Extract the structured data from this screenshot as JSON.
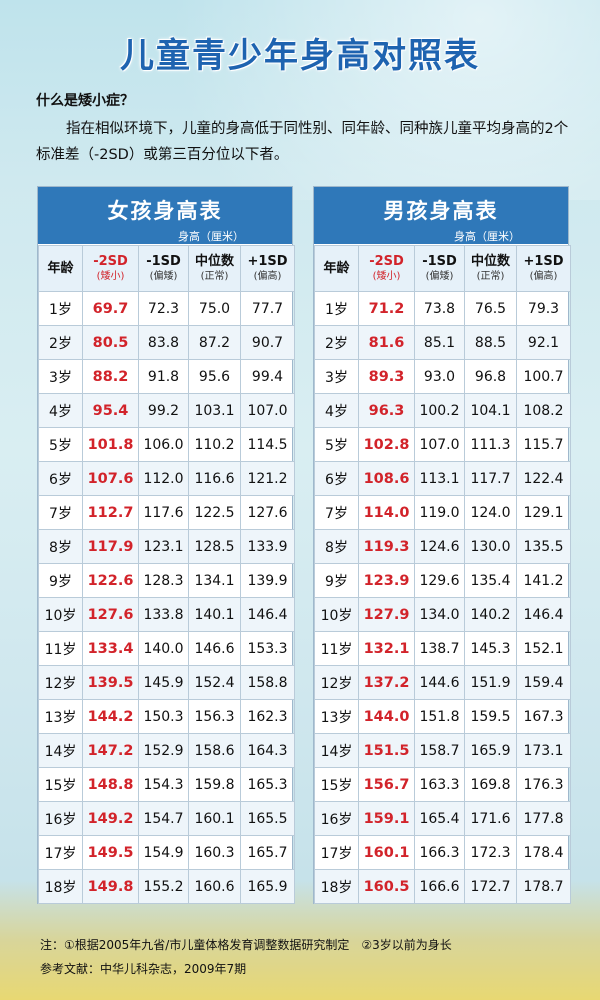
{
  "title": "儿童青少年身高对照表",
  "intro": {
    "question": "什么是矮小症？",
    "text": "指在相似环境下，儿童的身高低于同性别、同年龄、同种族儿童平均身高的2个标准差（-2SD）或第三百分位以下者。"
  },
  "columns": {
    "age": "年龄",
    "sd_minus2": "-2SD",
    "sd_minus2_sub": "(矮小)",
    "sd_minus1": "-1SD",
    "sd_minus1_sub": "(偏矮)",
    "median": "中位数",
    "median_sub": "(正常)",
    "sd_plus1": "+1SD",
    "sd_plus1_sub": "(偏高)"
  },
  "girl": {
    "title": "女孩身高表",
    "unit": "身高（厘米）",
    "rows": [
      {
        "age": "1岁",
        "m2": "69.7",
        "m1": "72.3",
        "med": "75.0",
        "p1": "77.7"
      },
      {
        "age": "2岁",
        "m2": "80.5",
        "m1": "83.8",
        "med": "87.2",
        "p1": "90.7"
      },
      {
        "age": "3岁",
        "m2": "88.2",
        "m1": "91.8",
        "med": "95.6",
        "p1": "99.4"
      },
      {
        "age": "4岁",
        "m2": "95.4",
        "m1": "99.2",
        "med": "103.1",
        "p1": "107.0"
      },
      {
        "age": "5岁",
        "m2": "101.8",
        "m1": "106.0",
        "med": "110.2",
        "p1": "114.5"
      },
      {
        "age": "6岁",
        "m2": "107.6",
        "m1": "112.0",
        "med": "116.6",
        "p1": "121.2"
      },
      {
        "age": "7岁",
        "m2": "112.7",
        "m1": "117.6",
        "med": "122.5",
        "p1": "127.6"
      },
      {
        "age": "8岁",
        "m2": "117.9",
        "m1": "123.1",
        "med": "128.5",
        "p1": "133.9"
      },
      {
        "age": "9岁",
        "m2": "122.6",
        "m1": "128.3",
        "med": "134.1",
        "p1": "139.9"
      },
      {
        "age": "10岁",
        "m2": "127.6",
        "m1": "133.8",
        "med": "140.1",
        "p1": "146.4"
      },
      {
        "age": "11岁",
        "m2": "133.4",
        "m1": "140.0",
        "med": "146.6",
        "p1": "153.3"
      },
      {
        "age": "12岁",
        "m2": "139.5",
        "m1": "145.9",
        "med": "152.4",
        "p1": "158.8"
      },
      {
        "age": "13岁",
        "m2": "144.2",
        "m1": "150.3",
        "med": "156.3",
        "p1": "162.3"
      },
      {
        "age": "14岁",
        "m2": "147.2",
        "m1": "152.9",
        "med": "158.6",
        "p1": "164.3"
      },
      {
        "age": "15岁",
        "m2": "148.8",
        "m1": "154.3",
        "med": "159.8",
        "p1": "165.3"
      },
      {
        "age": "16岁",
        "m2": "149.2",
        "m1": "154.7",
        "med": "160.1",
        "p1": "165.5"
      },
      {
        "age": "17岁",
        "m2": "149.5",
        "m1": "154.9",
        "med": "160.3",
        "p1": "165.7"
      },
      {
        "age": "18岁",
        "m2": "149.8",
        "m1": "155.2",
        "med": "160.6",
        "p1": "165.9"
      }
    ]
  },
  "boy": {
    "title": "男孩身高表",
    "unit": "身高（厘米）",
    "rows": [
      {
        "age": "1岁",
        "m2": "71.2",
        "m1": "73.8",
        "med": "76.5",
        "p1": "79.3"
      },
      {
        "age": "2岁",
        "m2": "81.6",
        "m1": "85.1",
        "med": "88.5",
        "p1": "92.1"
      },
      {
        "age": "3岁",
        "m2": "89.3",
        "m1": "93.0",
        "med": "96.8",
        "p1": "100.7"
      },
      {
        "age": "4岁",
        "m2": "96.3",
        "m1": "100.2",
        "med": "104.1",
        "p1": "108.2"
      },
      {
        "age": "5岁",
        "m2": "102.8",
        "m1": "107.0",
        "med": "111.3",
        "p1": "115.7"
      },
      {
        "age": "6岁",
        "m2": "108.6",
        "m1": "113.1",
        "med": "117.7",
        "p1": "122.4"
      },
      {
        "age": "7岁",
        "m2": "114.0",
        "m1": "119.0",
        "med": "124.0",
        "p1": "129.1"
      },
      {
        "age": "8岁",
        "m2": "119.3",
        "m1": "124.6",
        "med": "130.0",
        "p1": "135.5"
      },
      {
        "age": "9岁",
        "m2": "123.9",
        "m1": "129.6",
        "med": "135.4",
        "p1": "141.2"
      },
      {
        "age": "10岁",
        "m2": "127.9",
        "m1": "134.0",
        "med": "140.2",
        "p1": "146.4"
      },
      {
        "age": "11岁",
        "m2": "132.1",
        "m1": "138.7",
        "med": "145.3",
        "p1": "152.1"
      },
      {
        "age": "12岁",
        "m2": "137.2",
        "m1": "144.6",
        "med": "151.9",
        "p1": "159.4"
      },
      {
        "age": "13岁",
        "m2": "144.0",
        "m1": "151.8",
        "med": "159.5",
        "p1": "167.3"
      },
      {
        "age": "14岁",
        "m2": "151.5",
        "m1": "158.7",
        "med": "165.9",
        "p1": "173.1"
      },
      {
        "age": "15岁",
        "m2": "156.7",
        "m1": "163.3",
        "med": "169.8",
        "p1": "176.3"
      },
      {
        "age": "16岁",
        "m2": "159.1",
        "m1": "165.4",
        "med": "171.6",
        "p1": "177.8"
      },
      {
        "age": "17岁",
        "m2": "160.1",
        "m1": "166.3",
        "med": "172.3",
        "p1": "178.4"
      },
      {
        "age": "18岁",
        "m2": "160.5",
        "m1": "166.6",
        "med": "172.7",
        "p1": "178.7"
      }
    ]
  },
  "footer": {
    "note": "注：①根据2005年九省/市儿童体格发育调整数据研究制定　②3岁以前为身长",
    "reference": "参考文献：中华儿科杂志，2009年7期"
  },
  "colors": {
    "header_blue": "#2f78b9",
    "title_blue": "#1e63b0",
    "highlight_red": "#d2232a"
  }
}
